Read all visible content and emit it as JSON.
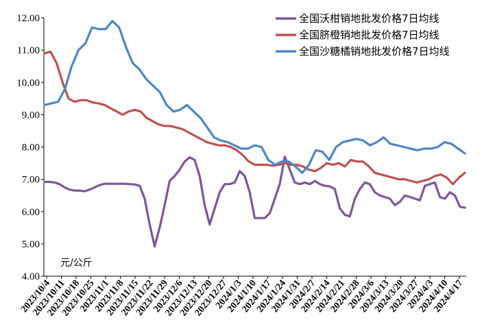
{
  "chart_data": {
    "type": "line",
    "title": "",
    "unit_label": "元/公斤",
    "ylim": [
      4.0,
      12.0
    ],
    "yticks": [
      "4.00",
      "5.00",
      "6.00",
      "7.00",
      "8.00",
      "9.00",
      "10.00",
      "11.00",
      "12.00"
    ],
    "x_tick_labels": [
      "2023/10/4",
      "2023/10/11",
      "2023/10/18",
      "2023/10/25",
      "2023/11/1",
      "2023/11/8",
      "2023/11/15",
      "2023/11/22",
      "2023/11/29",
      "2023/12/6",
      "2023/12/13",
      "2023/12/20",
      "2023/12/27",
      "2024/1/3",
      "2024/1/10",
      "2024/1/17",
      "2024/1/24",
      "2024/1/31",
      "2024/2/7",
      "2024/2/14",
      "2024/2/21",
      "2024/2/28",
      "2024/3/6",
      "2024/3/13",
      "2024/3/20",
      "2024/3/27",
      "2024/4/3",
      "2024/4/10",
      "2024/4/17"
    ],
    "grid": false,
    "legend_position": "top-right",
    "series": [
      {
        "name": "全国沃柑销地批发价格7日均线",
        "color": "#7B559E",
        "values": [
          6.92,
          6.92,
          6.9,
          6.85,
          6.75,
          6.68,
          6.65,
          6.65,
          6.63,
          6.68,
          6.75,
          6.82,
          6.86,
          6.86,
          6.86,
          6.86,
          6.86,
          6.85,
          6.84,
          6.8,
          6.4,
          5.6,
          4.92,
          5.5,
          6.2,
          6.95,
          7.1,
          7.3,
          7.55,
          7.68,
          7.6,
          7.1,
          6.2,
          5.6,
          6.1,
          6.6,
          6.85,
          6.85,
          6.9,
          7.25,
          7.1,
          6.6,
          5.8,
          5.8,
          5.8,
          5.95,
          6.4,
          6.85,
          7.7,
          7.3,
          6.9,
          6.85,
          6.9,
          6.85,
          6.95,
          6.85,
          6.8,
          6.78,
          6.7,
          6.1,
          5.9,
          5.85,
          6.4,
          6.7,
          6.9,
          6.85,
          6.6,
          6.5,
          6.45,
          6.4,
          6.2,
          6.3,
          6.5,
          6.45,
          6.4,
          6.35,
          6.8,
          6.85,
          6.9,
          6.45,
          6.4,
          6.6,
          6.5,
          6.15,
          6.12
        ]
      },
      {
        "name": "全国脐橙销地批发价格7日均线",
        "color": "#C0504D",
        "values": [
          10.9,
          10.95,
          10.6,
          10.0,
          9.5,
          9.4,
          9.45,
          9.45,
          9.38,
          9.35,
          9.3,
          9.2,
          9.1,
          9.0,
          9.1,
          9.15,
          9.1,
          8.9,
          8.8,
          8.7,
          8.65,
          8.65,
          8.6,
          8.55,
          8.45,
          8.35,
          8.25,
          8.15,
          8.1,
          8.05,
          8.05,
          8.0,
          7.9,
          7.75,
          7.55,
          7.45,
          7.45,
          7.45,
          7.42,
          7.45,
          7.5,
          7.45,
          7.45,
          7.4,
          7.3,
          7.25,
          7.35,
          7.5,
          7.45,
          7.5,
          7.4,
          7.6,
          7.55,
          7.55,
          7.4,
          7.2,
          7.15,
          7.1,
          7.05,
          7.0,
          7.0,
          6.95,
          6.9,
          6.95,
          7.0,
          7.1,
          7.15,
          7.05,
          6.85,
          7.05,
          7.2
        ]
      },
      {
        "name": "全国沙糖橘销地批发价格7日均线",
        "color": "#4A86C8",
        "values": [
          9.3,
          9.35,
          9.4,
          9.8,
          10.5,
          11.0,
          11.2,
          11.7,
          11.65,
          11.65,
          11.9,
          11.7,
          11.1,
          10.6,
          10.4,
          10.1,
          9.9,
          9.7,
          9.3,
          9.1,
          9.15,
          9.3,
          9.1,
          8.9,
          8.6,
          8.3,
          8.2,
          8.15,
          8.05,
          7.95,
          7.95,
          8.05,
          8.0,
          7.6,
          7.45,
          7.55,
          7.55,
          7.4,
          7.2,
          7.45,
          7.9,
          7.85,
          7.6,
          8.0,
          8.15,
          8.2,
          8.25,
          8.2,
          8.05,
          8.15,
          8.3,
          8.1,
          8.05,
          8.0,
          7.95,
          7.9,
          7.95,
          7.95,
          8.0,
          8.15,
          8.1,
          7.95,
          7.8
        ]
      }
    ]
  }
}
